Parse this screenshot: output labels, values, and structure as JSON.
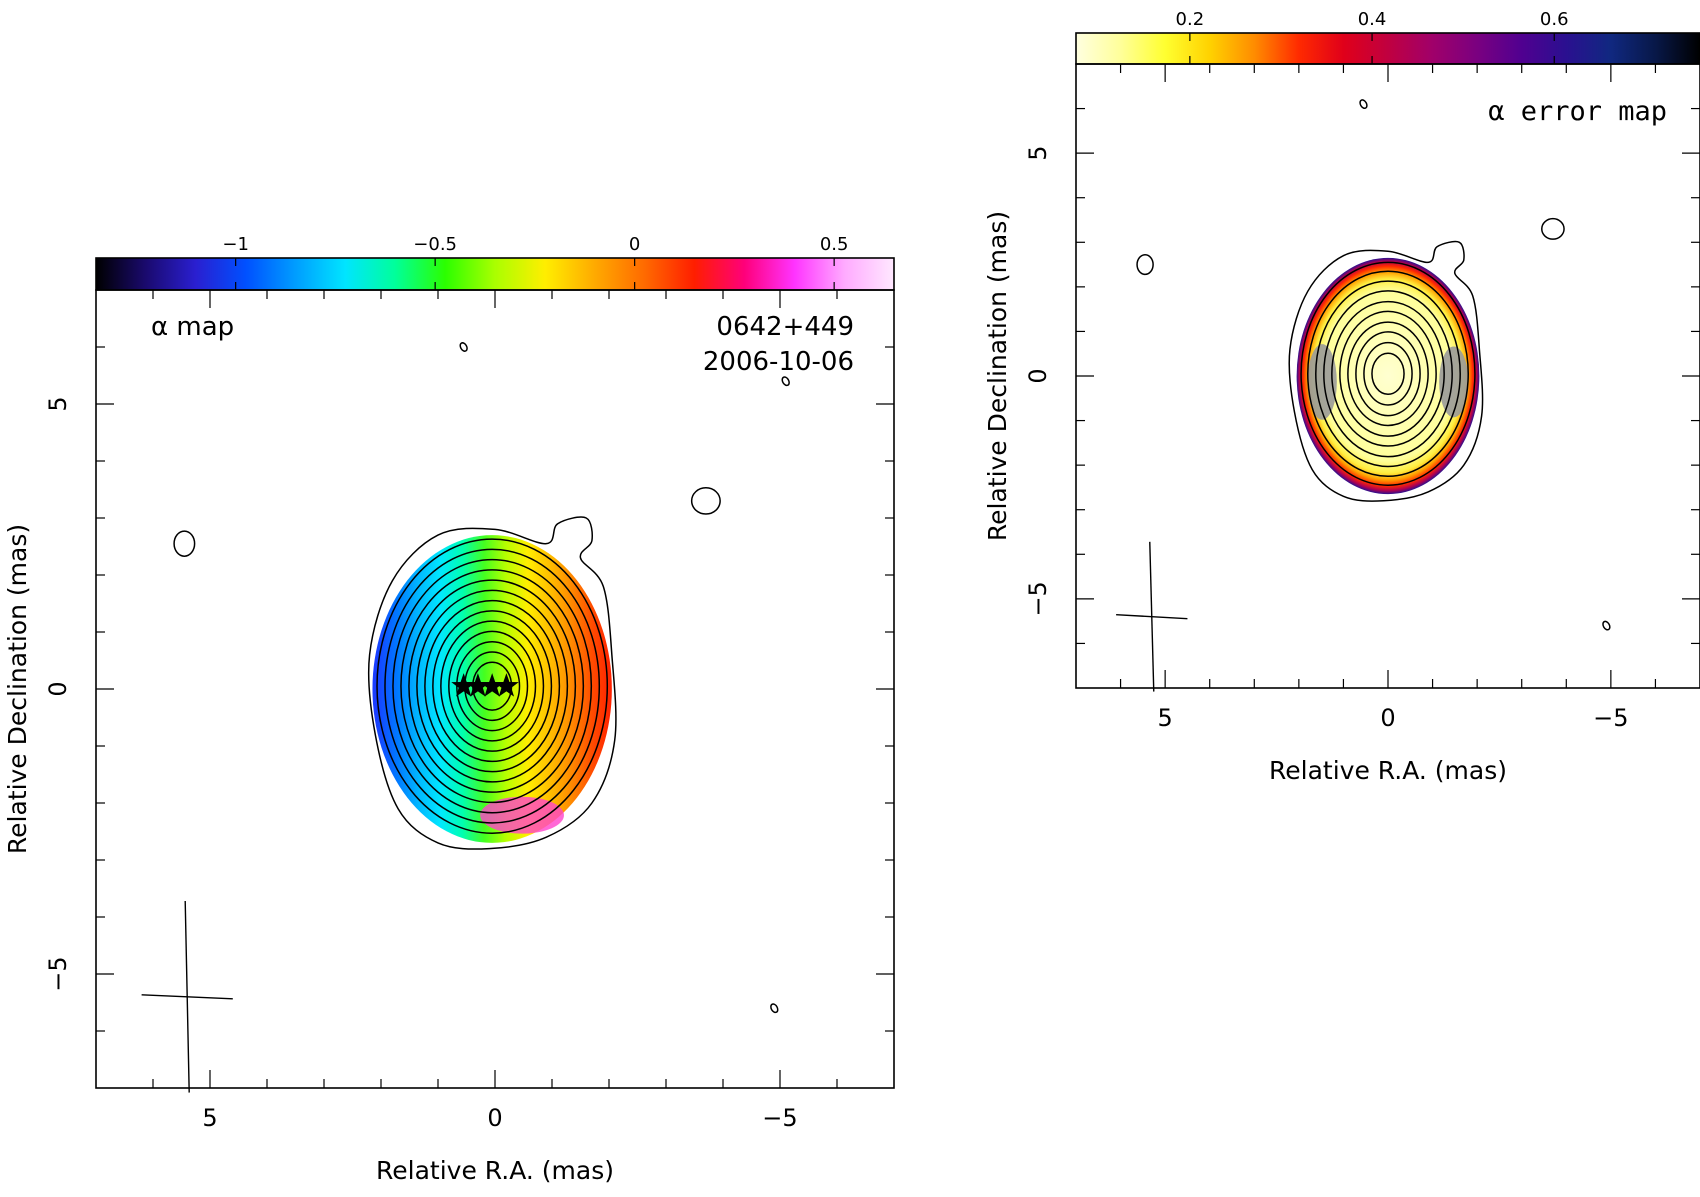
{
  "colors": {
    "alpha_colormap": [
      "#000000",
      "#1a0a6e",
      "#2a1fd0",
      "#0050ff",
      "#009dff",
      "#00e5ff",
      "#00ff9a",
      "#2bff00",
      "#aaff00",
      "#ffee00",
      "#ffaa00",
      "#ff6a00",
      "#ff1e00",
      "#ff007a",
      "#ff33ff",
      "#ffaaff",
      "#ffe8ff"
    ],
    "error_colormap": [
      "#ffffe0",
      "#ffff9a",
      "#ffff30",
      "#ffd200",
      "#ff8c00",
      "#ff2a00",
      "#e0001a",
      "#c00040",
      "#a0006a",
      "#7a0080",
      "#500090",
      "#2a1090",
      "#102880",
      "#081848",
      "#000000"
    ],
    "error_gray": "#9a9a9a"
  },
  "chart_data": [
    {
      "panel": "left",
      "type": "heatmap",
      "title_left": "α map",
      "source_name": "0642+449",
      "date": "2006-10-06",
      "xlabel": "Relative R.A. (mas)",
      "ylabel": "Relative Declination (mas)",
      "xlim": [
        7,
        -7
      ],
      "ylim": [
        -7,
        7
      ],
      "x_ticks": [
        5,
        0,
        -5
      ],
      "x_tick_labels": [
        "5",
        "0",
        "−5"
      ],
      "y_ticks": [
        -5,
        0,
        5
      ],
      "y_tick_labels": [
        "−5",
        "0",
        "5"
      ],
      "colorbar": {
        "range": [
          -1.35,
          0.65
        ],
        "ticks": [
          -1,
          -0.5,
          0,
          0.5
        ],
        "tick_labels": [
          "−1",
          "−0.5",
          "0",
          "0.5"
        ]
      },
      "emission_region": {
        "center": [
          0.05,
          0.0
        ],
        "semi_x": 2.1,
        "semi_y": 2.7
      },
      "alpha_gradient": {
        "east_value": -1.0,
        "west_value": 0.5
      },
      "contour_center": [
        0.05,
        0.05
      ],
      "contour_semi_axes": [
        [
          2.02,
          2.58
        ],
        [
          1.88,
          2.4
        ],
        [
          1.74,
          2.22
        ],
        [
          1.6,
          2.04
        ],
        [
          1.46,
          1.86
        ],
        [
          1.32,
          1.68
        ],
        [
          1.18,
          1.5
        ],
        [
          1.04,
          1.32
        ],
        [
          0.9,
          1.14
        ],
        [
          0.76,
          0.96
        ],
        [
          0.62,
          0.78
        ],
        [
          0.48,
          0.6
        ],
        [
          0.34,
          0.42
        ]
      ],
      "outer_contour": [
        [
          2.1,
          -0.8
        ],
        [
          2.2,
          0.6
        ],
        [
          1.8,
          1.9
        ],
        [
          1.0,
          2.7
        ],
        [
          0.0,
          2.8
        ],
        [
          -0.9,
          2.55
        ],
        [
          -1.1,
          2.9
        ],
        [
          -1.6,
          3.0
        ],
        [
          -1.7,
          2.6
        ],
        [
          -1.5,
          2.3
        ],
        [
          -1.9,
          1.8
        ],
        [
          -2.05,
          0.6
        ],
        [
          -2.1,
          -0.9
        ],
        [
          -1.7,
          -2.0
        ],
        [
          -0.9,
          -2.6
        ],
        [
          0.1,
          -2.8
        ],
        [
          1.0,
          -2.7
        ],
        [
          1.7,
          -2.1
        ]
      ],
      "island_contours": [
        [
          5.45,
          2.55,
          0.18,
          0.22
        ],
        [
          -3.7,
          3.3,
          0.25,
          0.23
        ]
      ],
      "small_marks": [
        [
          0.55,
          6.0
        ],
        [
          -5.1,
          5.4
        ],
        [
          -4.9,
          -5.6
        ]
      ],
      "stars": [
        [
          0.55,
          0.05
        ],
        [
          0.3,
          0.05
        ],
        [
          0.05,
          0.05
        ],
        [
          -0.2,
          0.05
        ]
      ],
      "beam": {
        "center": [
          5.4,
          -5.4
        ],
        "major_mas": 1.6,
        "minor_mas": 1.2
      }
    },
    {
      "panel": "right",
      "type": "heatmap",
      "title": "α error map",
      "xlabel": "Relative R.A. (mas)",
      "ylabel": "Relative Declination (mas)",
      "xlim": [
        7,
        -7
      ],
      "ylim": [
        -7,
        7
      ],
      "x_ticks": [
        5,
        0,
        -5
      ],
      "x_tick_labels": [
        "5",
        "0",
        "−5"
      ],
      "y_ticks": [
        -5,
        0,
        5
      ],
      "y_tick_labels": [
        "−5",
        "0",
        "5"
      ],
      "colorbar": {
        "range": [
          0.075,
          0.76
        ],
        "ticks": [
          0.2,
          0.4,
          0.6
        ],
        "tick_labels": [
          "0.2",
          "0.4",
          "0.6"
        ]
      },
      "emission_region": {
        "center": [
          0.0,
          0.0
        ],
        "semi_x": 2.05,
        "semi_y": 2.65
      },
      "contour_center": [
        0.0,
        0.05
      ],
      "contour_semi_axes": [
        [
          1.95,
          2.5
        ],
        [
          1.8,
          2.3
        ],
        [
          1.62,
          2.08
        ],
        [
          1.44,
          1.86
        ],
        [
          1.26,
          1.62
        ],
        [
          1.08,
          1.4
        ],
        [
          0.9,
          1.16
        ],
        [
          0.72,
          0.94
        ],
        [
          0.54,
          0.7
        ],
        [
          0.36,
          0.46
        ]
      ],
      "outer_contour": [
        [
          2.1,
          -0.8
        ],
        [
          2.2,
          0.6
        ],
        [
          1.8,
          1.9
        ],
        [
          1.0,
          2.7
        ],
        [
          0.0,
          2.8
        ],
        [
          -0.9,
          2.55
        ],
        [
          -1.1,
          2.9
        ],
        [
          -1.6,
          3.0
        ],
        [
          -1.7,
          2.6
        ],
        [
          -1.5,
          2.3
        ],
        [
          -1.9,
          1.8
        ],
        [
          -2.05,
          0.6
        ],
        [
          -2.1,
          -0.9
        ],
        [
          -1.7,
          -2.0
        ],
        [
          -0.9,
          -2.6
        ],
        [
          0.1,
          -2.8
        ],
        [
          1.0,
          -2.7
        ],
        [
          1.7,
          -2.1
        ]
      ],
      "island_contours": [
        [
          5.45,
          2.5,
          0.18,
          0.22
        ],
        [
          -3.7,
          3.3,
          0.25,
          0.23
        ]
      ],
      "small_marks": [
        [
          0.55,
          6.1
        ],
        [
          -4.9,
          -5.6
        ]
      ],
      "beam": {
        "center": [
          5.3,
          -5.4
        ],
        "major_mas": 1.6,
        "minor_mas": 1.2
      }
    }
  ]
}
